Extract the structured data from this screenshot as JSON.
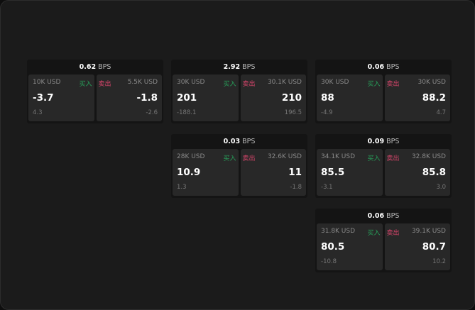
{
  "labels": {
    "buy": "买入",
    "sell": "卖出",
    "unit": "BPS"
  },
  "colors": {
    "buy": "#27a05a",
    "sell": "#d8456b"
  },
  "cards": [
    {
      "spread": "0.62",
      "bid_size": "10K USD",
      "bid": "-3.7",
      "bid_change": "4.3",
      "ask_size": "5.5K USD",
      "ask": "-1.8",
      "ask_change": "-2.6"
    },
    {
      "spread": "2.92",
      "bid_size": "30K USD",
      "bid": "201",
      "bid_change": "-188.1",
      "ask_size": "30.1K USD",
      "ask": "210",
      "ask_change": "196.5"
    },
    {
      "spread": "0.06",
      "bid_size": "30K USD",
      "bid": "88",
      "bid_change": "-4.9",
      "ask_size": "30K USD",
      "ask": "88.2",
      "ask_change": "4.7"
    },
    {
      "spread": "0.03",
      "bid_size": "28K USD",
      "bid": "10.9",
      "bid_change": "1.3",
      "ask_size": "32.6K USD",
      "ask": "11",
      "ask_change": "-1.8"
    },
    {
      "spread": "0.09",
      "bid_size": "34.1K USD",
      "bid": "85.5",
      "bid_change": "-3.1",
      "ask_size": "32.8K USD",
      "ask": "85.8",
      "ask_change": "3.0"
    },
    {
      "spread": "0.06",
      "bid_size": "31.8K USD",
      "bid": "80.5",
      "bid_change": "-10.8",
      "ask_size": "39.1K USD",
      "ask": "80.7",
      "ask_change": "10.2"
    }
  ]
}
